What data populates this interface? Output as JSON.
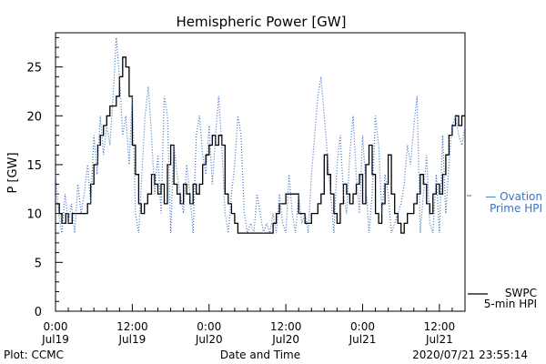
{
  "chart_data": {
    "type": "line",
    "title": "Hemispheric Power [GW]",
    "ylabel": "P [GW]",
    "xlabel": "Date and Time",
    "ylim": [
      0,
      28.5
    ],
    "yticks": [
      0,
      5,
      10,
      15,
      20,
      25
    ],
    "xlim_hours": [
      0,
      64
    ],
    "xticks": [
      {
        "hour": 0,
        "line1": "0:00",
        "line2": "Jul19"
      },
      {
        "hour": 12,
        "line1": "12:00",
        "line2": "Jul19"
      },
      {
        "hour": 24,
        "line1": "0:00",
        "line2": "Jul20"
      },
      {
        "hour": 36,
        "line1": "12:00",
        "line2": "Jul20"
      },
      {
        "hour": 48,
        "line1": "0:00",
        "line2": "Jul21"
      },
      {
        "hour": 60,
        "line1": "12:00",
        "line2": "Jul21"
      }
    ],
    "series": [
      {
        "name": "SWPC 5-min HPI",
        "color": "#000000",
        "style": "solid-step",
        "x": [
          0,
          0.6,
          1,
          1.6,
          2,
          2.6,
          3,
          3.6,
          4,
          4.6,
          5,
          5.5,
          6,
          6.6,
          7,
          7.5,
          8,
          8.5,
          9,
          9.5,
          10,
          10.5,
          11,
          11.5,
          12,
          12.5,
          13,
          13.4,
          13.9,
          14.4,
          15,
          15.5,
          16,
          16.5,
          17,
          17.5,
          18,
          18.5,
          19,
          19.5,
          20,
          20.5,
          21,
          21.5,
          22,
          22.5,
          23,
          23.5,
          24,
          24.5,
          25,
          25.5,
          26,
          26.5,
          27,
          27.5,
          28,
          28.5,
          29,
          29.5,
          30,
          30.5,
          31,
          31.5,
          32,
          32.5,
          33,
          33.5,
          34,
          34.5,
          35,
          36,
          37,
          38,
          39,
          40,
          41,
          41.5,
          42,
          42.5,
          43,
          43.5,
          44,
          44.5,
          45,
          45.5,
          46,
          46.5,
          47,
          47.5,
          48,
          48.5,
          49,
          49.5,
          50,
          50.5,
          51,
          51.5,
          52,
          52.5,
          53,
          53.5,
          54,
          54.5,
          55,
          55.5,
          56,
          56.5,
          57,
          57.5,
          58,
          58.5,
          59,
          59.5,
          60,
          60.5,
          61,
          61.5,
          62,
          62.5,
          63,
          63.5,
          64
        ],
        "y": [
          11,
          10,
          9,
          10,
          9,
          10,
          10,
          10,
          10,
          10,
          11,
          13,
          15,
          17,
          18,
          19,
          20,
          21,
          21,
          22,
          24,
          26,
          25,
          22,
          17,
          14,
          11,
          10,
          11,
          12,
          14,
          13,
          12,
          13,
          11,
          15,
          17,
          13,
          12,
          11,
          13,
          12,
          11,
          13,
          12,
          13,
          15,
          16,
          17,
          18,
          17,
          18,
          17,
          12,
          11,
          10,
          9,
          8,
          8,
          8,
          8,
          8,
          8,
          8,
          8,
          8,
          8,
          8,
          9,
          10,
          11,
          12,
          12,
          10,
          9,
          10,
          11,
          12,
          16,
          14,
          12,
          10,
          9,
          11,
          13,
          12,
          11,
          12,
          13,
          14,
          11,
          15,
          17,
          14,
          10,
          9,
          11,
          13,
          16,
          12,
          10,
          9,
          8,
          9,
          10,
          10,
          11,
          12,
          14,
          13,
          11,
          10,
          12,
          13,
          12,
          14,
          16,
          18,
          19,
          20,
          19,
          20,
          20
        ],
        "legend": [
          "SWPC",
          "5-min HPI"
        ]
      },
      {
        "name": "Ovation Prime HPI",
        "color": "#3a73c4",
        "style": "dotted",
        "x": [
          0,
          0.5,
          1,
          1.5,
          2,
          2.5,
          3,
          3.5,
          4,
          4.5,
          5,
          5.5,
          6,
          6.5,
          7,
          7.5,
          8,
          8.5,
          9,
          9.5,
          10,
          10.5,
          11,
          11.5,
          12,
          12.5,
          13,
          13.5,
          14,
          14.5,
          15,
          15.5,
          16,
          16.5,
          17,
          17.5,
          18,
          18.5,
          19,
          19.5,
          20,
          20.5,
          21,
          21.5,
          22,
          22.5,
          23,
          23.5,
          24,
          24.5,
          25,
          25.5,
          26,
          26.5,
          27,
          27.5,
          28,
          28.5,
          29,
          29.5,
          30,
          30.5,
          31,
          31.5,
          32,
          32.5,
          33,
          33.5,
          34,
          34.5,
          35,
          35.5,
          36,
          36.5,
          37,
          37.5,
          38,
          38.5,
          39,
          39.5,
          40,
          40.5,
          41,
          41.5,
          42,
          42.5,
          43,
          43.5,
          44,
          44.5,
          45,
          45.5,
          46,
          46.5,
          47,
          47.5,
          48,
          48.5,
          49,
          49.5,
          50,
          50.5,
          51,
          51.5,
          52,
          52.5,
          53,
          53.5,
          54,
          54.5,
          55,
          55.5,
          56,
          56.5,
          57,
          57.5,
          58,
          58.5,
          59,
          59.5,
          60,
          60.5,
          61,
          61.5,
          62,
          62.5,
          63,
          63.5,
          64
        ],
        "y": [
          14,
          10,
          8,
          12,
          9,
          11,
          8,
          13,
          10,
          12,
          15,
          11,
          18,
          14,
          20,
          16,
          19,
          17,
          22,
          28,
          24,
          18,
          20,
          15,
          22,
          10,
          8,
          14,
          20,
          23,
          18,
          12,
          16,
          10,
          22,
          20,
          8,
          17,
          14,
          12,
          10,
          15,
          12,
          8,
          18,
          20,
          16,
          14,
          19,
          13,
          18,
          22,
          17,
          10,
          8,
          12,
          15,
          20,
          18,
          10,
          8,
          9,
          8,
          12,
          10,
          8,
          9,
          8,
          10,
          8,
          12,
          9,
          8,
          14,
          10,
          8,
          12,
          9,
          10,
          8,
          14,
          18,
          22,
          24,
          20,
          16,
          12,
          8,
          15,
          18,
          12,
          10,
          16,
          20,
          14,
          10,
          18,
          13,
          8,
          12,
          20,
          17,
          10,
          14,
          12,
          8,
          9,
          10,
          11,
          13,
          17,
          15,
          19,
          22,
          8,
          12,
          16,
          9,
          8,
          14,
          8,
          18,
          10,
          15,
          19,
          20,
          18,
          17,
          19
        ]
      }
    ],
    "legend_ovation": [
      "— Ovation",
      "Prime HPI"
    ],
    "annotations": {
      "plot_source": "Plot: CCMC",
      "timestamp": "2020/07/21  23:55:14"
    }
  }
}
